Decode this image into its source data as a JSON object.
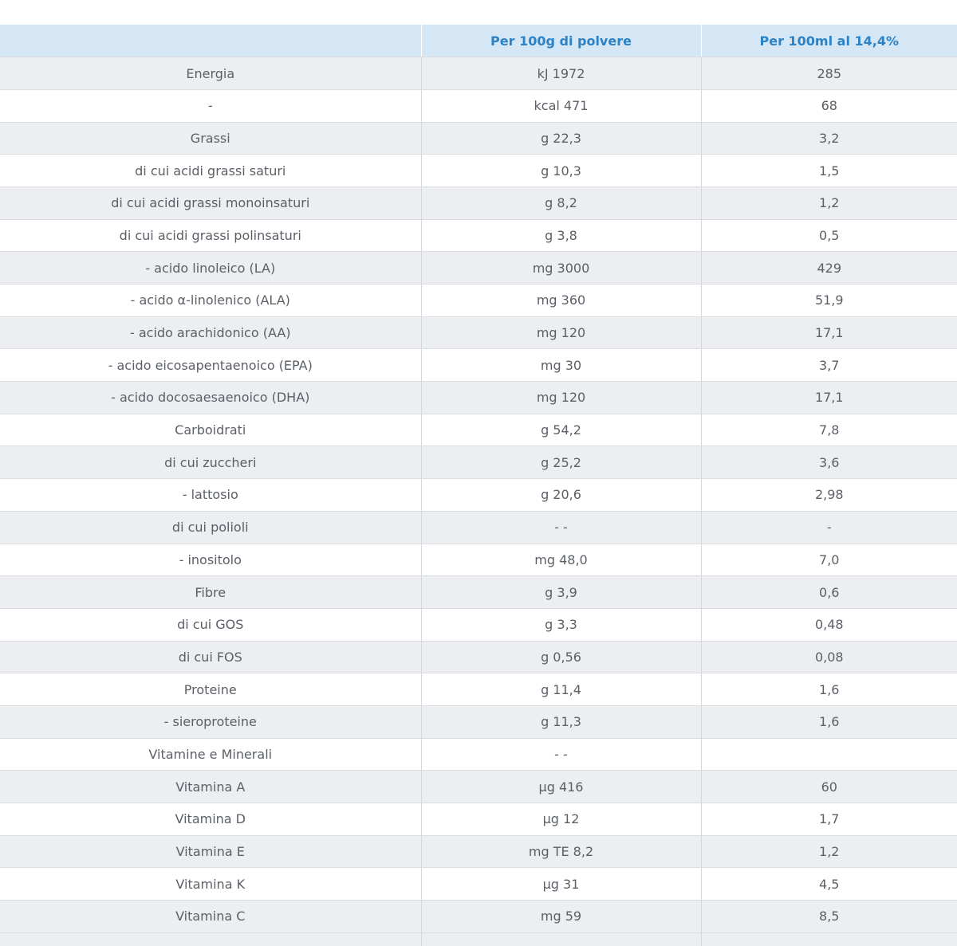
{
  "table": {
    "header": [
      null,
      "Per 100g di polvere",
      "Per 100ml al 14,4%"
    ],
    "rows": [
      [
        "Energia",
        "kJ 1972",
        "285"
      ],
      [
        "-",
        "kcal 471",
        "68"
      ],
      [
        "Grassi",
        "g 22,3",
        "3,2"
      ],
      [
        "di cui acidi grassi saturi",
        "g 10,3",
        "1,5"
      ],
      [
        "di cui acidi grassi monoinsaturi",
        "g 8,2",
        "1,2"
      ],
      [
        "di cui acidi grassi polinsaturi",
        "g 3,8",
        "0,5"
      ],
      [
        "- acido linoleico (LA)",
        "mg 3000",
        "429"
      ],
      [
        "- acido α-linolenico (ALA)",
        "mg 360",
        "51,9"
      ],
      [
        "- acido arachidonico (AA)",
        "mg 120",
        "17,1"
      ],
      [
        "- acido eicosapentaenoico (EPA)",
        "mg 30",
        "3,7"
      ],
      [
        "- acido docosaesaenoico (DHA)",
        "mg 120",
        "17,1"
      ],
      [
        "Carboidrati",
        "g 54,2",
        "7,8"
      ],
      [
        "di cui zuccheri",
        "g 25,2",
        "3,6"
      ],
      [
        "- lattosio",
        "g 20,6",
        "2,98"
      ],
      [
        "di cui polioli",
        "- -",
        "-"
      ],
      [
        "- inositolo",
        "mg 48,0",
        "7,0"
      ],
      [
        "Fibre",
        "g 3,9",
        "0,6"
      ],
      [
        "di cui GOS",
        "g 3,3",
        "0,48"
      ],
      [
        "di cui FOS",
        "g 0,56",
        "0,08"
      ],
      [
        "Proteine",
        "g 11,4",
        "1,6"
      ],
      [
        "- sieroproteine",
        "g 11,3",
        "1,6"
      ],
      [
        "Vitamine e Minerali",
        "- -",
        null
      ],
      [
        "Vitamina A",
        "µg 416",
        "60"
      ],
      [
        "Vitamina D",
        "µg 12",
        "1,7"
      ],
      [
        "Vitamina E",
        "mg TE 8,2",
        "1,2"
      ],
      [
        "Vitamina K",
        "µg 31",
        "4,5"
      ],
      [
        "Vitamina C",
        "mg 59",
        "8,5"
      ]
    ]
  }
}
